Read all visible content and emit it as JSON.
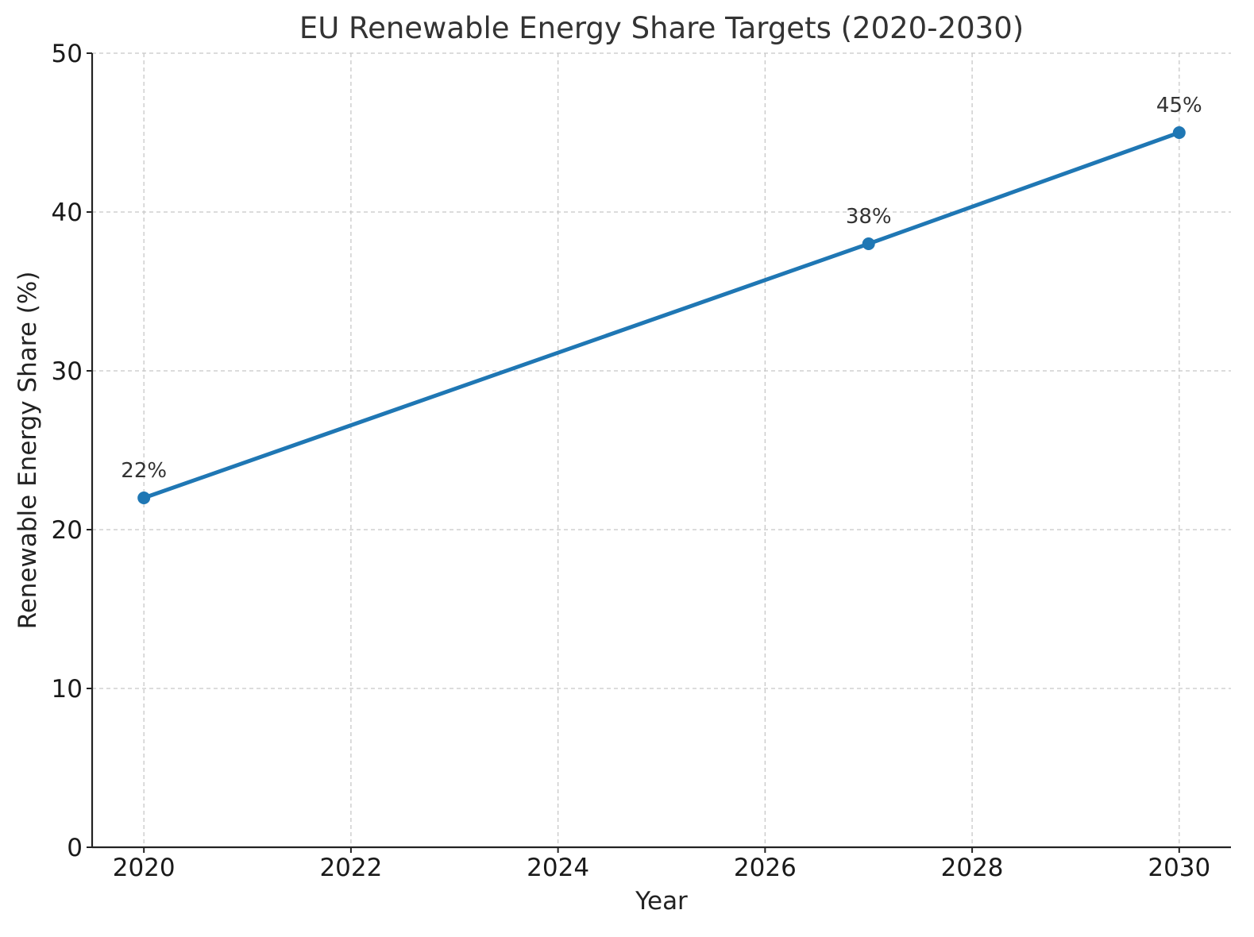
{
  "chart_data": {
    "type": "line",
    "title": "EU Renewable Energy Share Targets (2020-2030)",
    "xlabel": "Year",
    "ylabel": "Renewable Energy Share (%)",
    "xlim": [
      2019.5,
      2030.5
    ],
    "ylim": [
      0,
      50
    ],
    "x_ticks": [
      2020,
      2022,
      2024,
      2026,
      2028,
      2030
    ],
    "y_ticks": [
      0,
      10,
      20,
      30,
      40,
      50
    ],
    "grid": true,
    "series": [
      {
        "color": "#1f77b4",
        "marker": "circle",
        "x": [
          2020,
          2027,
          2030
        ],
        "y": [
          22,
          38,
          45
        ],
        "labels": [
          "22%",
          "38%",
          "45%"
        ]
      }
    ]
  }
}
